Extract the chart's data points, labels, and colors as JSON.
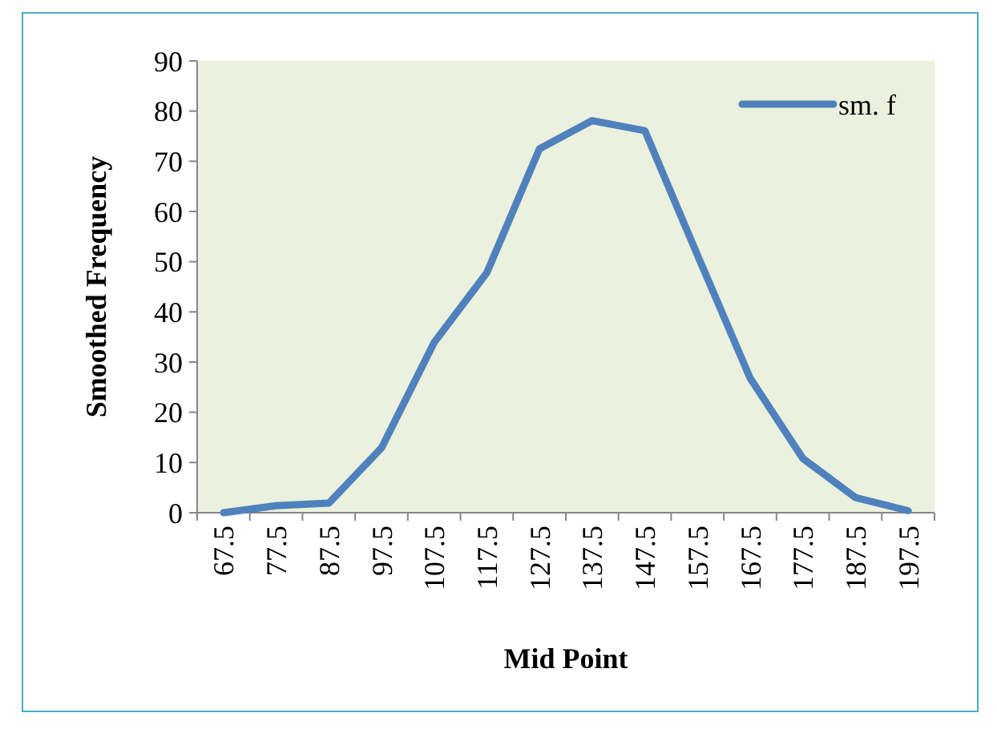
{
  "chart_data": {
    "type": "line",
    "xlabel": "Mid Point",
    "ylabel": "Smoothed Frequency",
    "categories": [
      "67.5",
      "77.5",
      "87.5",
      "97.5",
      "107.5",
      "117.5",
      "127.5",
      "137.5",
      "147.5",
      "157.5",
      "167.5",
      "177.5",
      "187.5",
      "197.5"
    ],
    "series": [
      {
        "name": "sm. f",
        "color": "#4f81bd",
        "values": [
          0,
          1.4,
          1.9,
          12.9,
          33.9,
          47.8,
          72.5,
          78.1,
          76.1,
          51.3,
          26.8,
          10.8,
          3,
          0.4
        ]
      }
    ],
    "ylim": [
      0,
      90
    ],
    "yticks": [
      0,
      10,
      20,
      30,
      40,
      50,
      60,
      70,
      80,
      90
    ],
    "grid": false,
    "legend": "top right",
    "marker": "none",
    "line_style": "solid"
  }
}
